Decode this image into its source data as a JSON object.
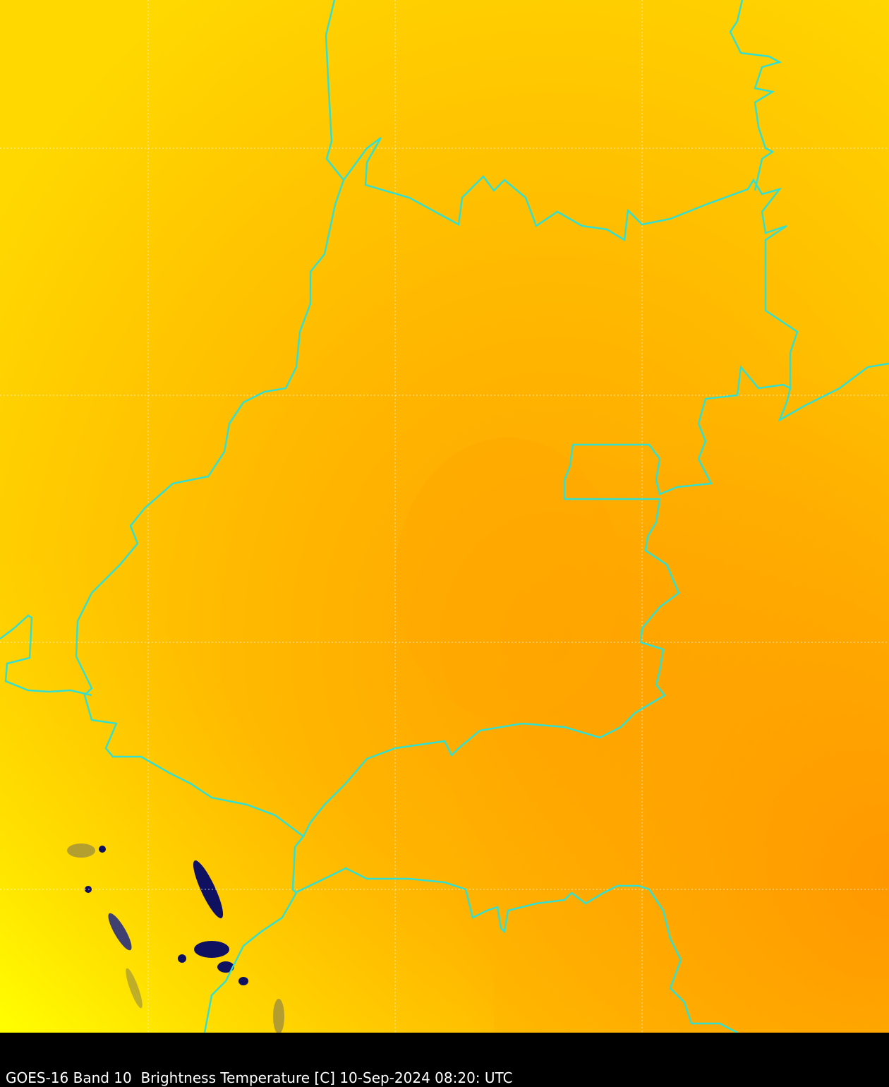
{
  "caption": "GOES-16 Band 10  Brightness Temperature [C] 10-Sep-2024 08:20: UTC",
  "colors": {
    "warm_core": "#ffa000",
    "mid": "#ffc000",
    "cool_edge": "#ffff00",
    "borders": "#33e0d0",
    "gridlines": "#ffffff",
    "cold_cloud": "#101060"
  }
}
